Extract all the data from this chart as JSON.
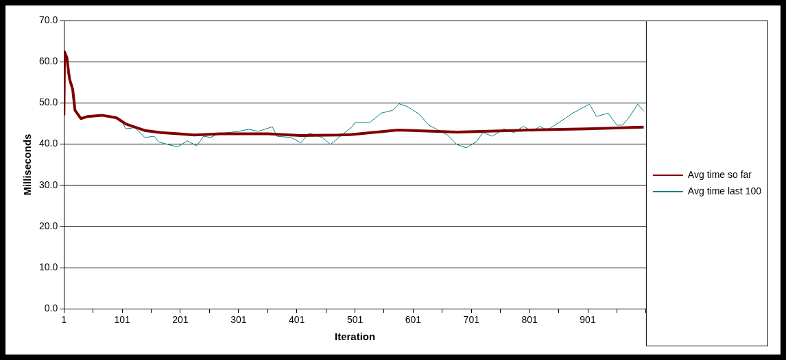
{
  "chart_data": {
    "type": "line",
    "xlabel": "Iteration",
    "ylabel": "Milliseconds",
    "xlim": [
      1,
      1001
    ],
    "xticks": [
      1,
      {
        "value": 51,
        "label": null
      },
      101,
      {
        "value": 151,
        "label": null
      },
      201,
      {
        "value": 251,
        "label": null
      },
      301,
      {
        "value": 351,
        "label": null
      },
      401,
      {
        "value": 451,
        "label": null
      },
      501,
      {
        "value": 551,
        "label": null
      },
      601,
      {
        "value": 651,
        "label": null
      },
      701,
      {
        "value": 751,
        "label": null
      },
      801,
      {
        "value": 851,
        "label": null
      },
      901,
      {
        "value": 951,
        "label": null
      },
      {
        "value": 1001,
        "label": null
      }
    ],
    "ylim": [
      0,
      70
    ],
    "yticks": [
      {
        "value": 0,
        "label": "0.0"
      },
      {
        "value": 10,
        "label": "10.0"
      },
      {
        "value": 20,
        "label": "20.0"
      },
      {
        "value": 30,
        "label": "30.0"
      },
      {
        "value": 40,
        "label": "40.0"
      },
      {
        "value": 50,
        "label": "50.0"
      },
      {
        "value": 60,
        "label": "60.0"
      },
      {
        "value": 70,
        "label": "70.0"
      }
    ],
    "grid": "y",
    "legend": "right",
    "marker": "none",
    "line_style": "solid",
    "series": [
      {
        "name": "Avg time so far",
        "color": "#800000",
        "x": [
          1,
          2,
          6,
          9,
          11,
          16,
          20,
          30,
          42,
          66,
          91,
          107,
          140,
          168,
          225,
          270,
          351,
          408,
          473,
          493,
          575,
          676,
          798,
          900,
          997
        ],
        "values": [
          47.0,
          62.4,
          61.0,
          57.4,
          55.6,
          53.3,
          48.2,
          46.2,
          46.7,
          47.0,
          46.4,
          44.9,
          43.3,
          42.8,
          42.2,
          42.5,
          42.5,
          42.1,
          42.2,
          42.3,
          43.4,
          42.9,
          43.4,
          43.7,
          44.1
        ]
      },
      {
        "name": "Avg time last 100",
        "color": "#008080",
        "x": [
          101,
          107,
          123,
          140,
          156,
          164,
          196,
          213,
          229,
          241,
          253,
          266,
          302,
          318,
          335,
          359,
          367,
          391,
          408,
          422,
          445,
          459,
          473,
          497,
          501,
          526,
          546,
          566,
          577,
          591,
          611,
          628,
          644,
          660,
          676,
          692,
          709,
          721,
          737,
          757,
          774,
          790,
          806,
          819,
          831,
          851,
          875,
          904,
          916,
          936,
          951,
          961,
          973,
          987,
          997
        ],
        "values": [
          45.5,
          43.7,
          44.0,
          41.6,
          41.9,
          40.5,
          39.3,
          40.8,
          39.6,
          41.9,
          41.6,
          42.5,
          43.1,
          43.6,
          43.1,
          44.2,
          41.9,
          41.6,
          40.3,
          42.7,
          41.6,
          39.9,
          41.6,
          44.3,
          45.2,
          45.2,
          47.5,
          48.2,
          49.8,
          49.1,
          47.3,
          44.6,
          43.4,
          42.2,
          39.9,
          39.1,
          40.5,
          42.8,
          41.9,
          43.7,
          42.8,
          44.3,
          43.1,
          44.3,
          43.4,
          45.2,
          47.5,
          49.7,
          46.7,
          47.5,
          44.6,
          44.6,
          46.7,
          49.7,
          48.0
        ]
      }
    ]
  }
}
